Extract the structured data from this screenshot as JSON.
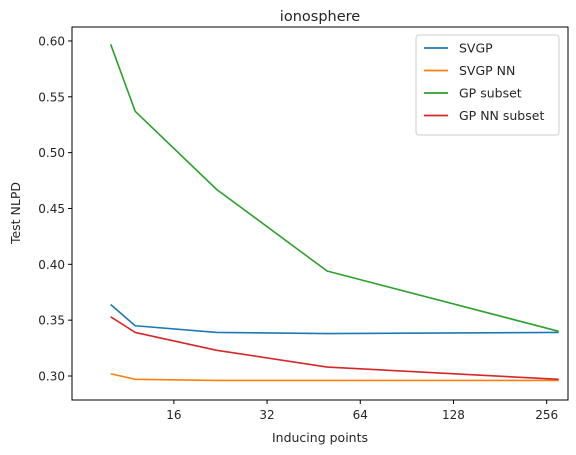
{
  "chart_data": {
    "type": "line",
    "title": "ionosphere",
    "xlabel": "Inducing points",
    "ylabel": "Test NLPD",
    "x_scale": "log2",
    "x_ticks": [
      16,
      32,
      64,
      128,
      256
    ],
    "x_tick_labels": [
      "16",
      "32",
      "64",
      "128",
      "256"
    ],
    "y_ticks": [
      0.3,
      0.35,
      0.4,
      0.45,
      0.5,
      0.55,
      0.6
    ],
    "y_tick_labels": [
      "0.30",
      "0.35",
      "0.40",
      "0.45",
      "0.50",
      "0.55",
      "0.60"
    ],
    "xlim": [
      7.5,
      300
    ],
    "ylim": [
      0.2785,
      0.6125
    ],
    "legend": "top-right",
    "grid": false,
    "series": [
      {
        "name": "SVGP",
        "color": "#1f77b4",
        "x": [
          10,
          12,
          22,
          50,
          280
        ],
        "y": [
          0.364,
          0.345,
          0.339,
          0.338,
          0.339
        ]
      },
      {
        "name": "SVGP NN",
        "color": "#ff7f0e",
        "x": [
          10,
          12,
          22,
          50,
          280
        ],
        "y": [
          0.302,
          0.297,
          0.296,
          0.296,
          0.296
        ]
      },
      {
        "name": "GP subset",
        "color": "#2ca02c",
        "x": [
          10,
          12,
          22,
          50,
          280
        ],
        "y": [
          0.597,
          0.537,
          0.467,
          0.394,
          0.34
        ]
      },
      {
        "name": "GP NN subset",
        "color": "#d62728",
        "x": [
          10,
          12,
          22,
          50,
          280
        ],
        "y": [
          0.353,
          0.339,
          0.323,
          0.308,
          0.297
        ]
      }
    ]
  }
}
